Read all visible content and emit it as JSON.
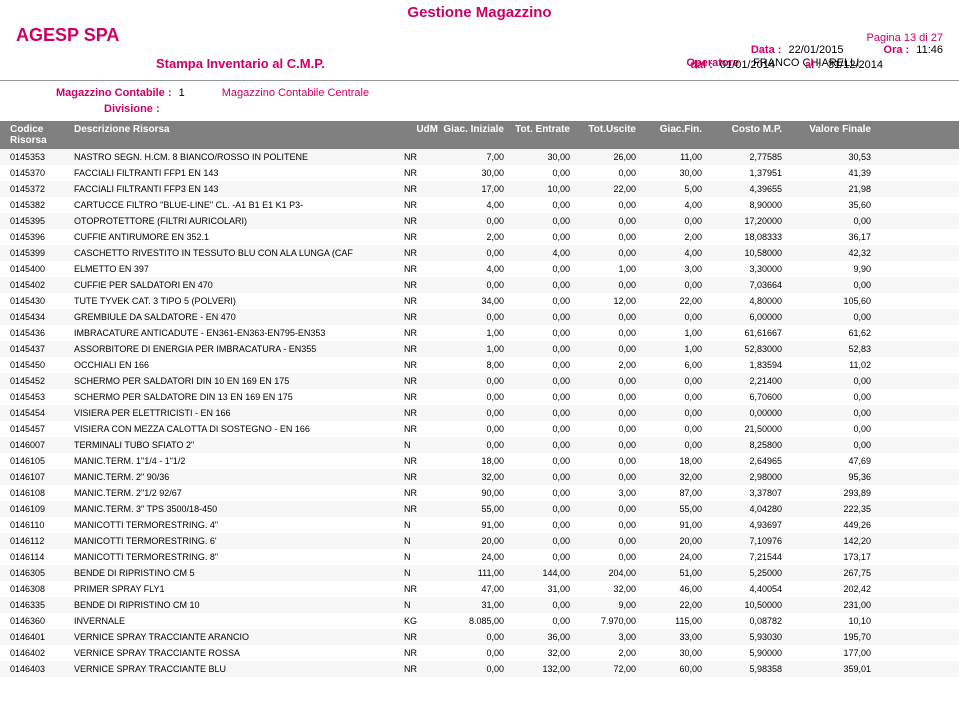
{
  "title": "Gestione Magazzino",
  "company": "AGESP SPA",
  "page_label": "Pagina",
  "page_value": "13 di 27",
  "subtitle": "Stampa Inventario al C.M.P.",
  "data_label": "Data :",
  "data_value": "22/01/2015",
  "ora_label": "Ora :",
  "ora_value": "11:46",
  "operatore_label": "Operatore",
  "operatore_value": "FRANCO CHIARELLI",
  "dal_label": "dal :",
  "dal_value": "01/01/2014",
  "al_label": "al :",
  "al_value": "31/12/2014",
  "mag_cont_label": "Magazzino Contabile :",
  "mag_cont_code": "1",
  "mag_cont_name": "Magazzino Contabile Centrale",
  "divisione_label": "Divisione :",
  "columns": {
    "code": "Codice Risorsa",
    "desc": "Descrizione Risorsa",
    "udm": "UdM",
    "giac_ini": "Giac. Iniziale",
    "entrate": "Tot. Entrate",
    "uscite": "Tot.Uscite",
    "giac_fin": "Giac.Fin.",
    "costo": "Costo M.P.",
    "valore": "Valore Finale"
  },
  "rows": [
    {
      "code": "0145353",
      "desc": "NASTRO SEGN. H.CM. 8 BIANCO/ROSSO IN POLITENE",
      "udm": "NR",
      "gi": "7,00",
      "en": "30,00",
      "us": "26,00",
      "gf": "11,00",
      "cm": "2,77585",
      "vf": "30,53"
    },
    {
      "code": "0145370",
      "desc": "FACCIALI FILTRANTI FFP1      EN 143",
      "udm": "NR",
      "gi": "30,00",
      "en": "0,00",
      "us": "0,00",
      "gf": "30,00",
      "cm": "1,37951",
      "vf": "41,39"
    },
    {
      "code": "0145372",
      "desc": "FACCIALI FILTRANTI FFP3      EN 143",
      "udm": "NR",
      "gi": "17,00",
      "en": "10,00",
      "us": "22,00",
      "gf": "5,00",
      "cm": "4,39655",
      "vf": "21,98"
    },
    {
      "code": "0145382",
      "desc": "CARTUCCE FILTRO \"BLUE-LINE\" CL. -A1 B1 E1 K1 P3-",
      "udm": "NR",
      "gi": "4,00",
      "en": "0,00",
      "us": "0,00",
      "gf": "4,00",
      "cm": "8,90000",
      "vf": "35,60"
    },
    {
      "code": "0145395",
      "desc": "OTOPROTETTORE (FILTRI AURICOLARI)",
      "udm": "NR",
      "gi": "0,00",
      "en": "0,00",
      "us": "0,00",
      "gf": "0,00",
      "cm": "17,20000",
      "vf": "0,00"
    },
    {
      "code": "0145396",
      "desc": "CUFFIE ANTIRUMORE            EN 352.1",
      "udm": "NR",
      "gi": "2,00",
      "en": "0,00",
      "us": "0,00",
      "gf": "2,00",
      "cm": "18,08333",
      "vf": "36,17"
    },
    {
      "code": "0145399",
      "desc": "CASCHETTO RIVESTITO IN TESSUTO BLU CON ALA LUNGA (CAF",
      "udm": "NR",
      "gi": "0,00",
      "en": "4,00",
      "us": "0,00",
      "gf": "4,00",
      "cm": "10,58000",
      "vf": "42,32"
    },
    {
      "code": "0145400",
      "desc": "ELMETTO                      EN 397",
      "udm": "NR",
      "gi": "4,00",
      "en": "0,00",
      "us": "1,00",
      "gf": "3,00",
      "cm": "3,30000",
      "vf": "9,90"
    },
    {
      "code": "0145402",
      "desc": "CUFFIE PER SALDATORI      EN 470",
      "udm": "NR",
      "gi": "0,00",
      "en": "0,00",
      "us": "0,00",
      "gf": "0,00",
      "cm": "7,03664",
      "vf": "0,00"
    },
    {
      "code": "0145430",
      "desc": "TUTE TYVEK CAT. 3 TIPO 5 (POLVERI)",
      "udm": "NR",
      "gi": "34,00",
      "en": "0,00",
      "us": "12,00",
      "gf": "22,00",
      "cm": "4,80000",
      "vf": "105,60"
    },
    {
      "code": "0145434",
      "desc": "GREMBIULE DA SALDATORE  - EN 470",
      "udm": "NR",
      "gi": "0,00",
      "en": "0,00",
      "us": "0,00",
      "gf": "0,00",
      "cm": "6,00000",
      "vf": "0,00"
    },
    {
      "code": "0145436",
      "desc": "IMBRACATURE ANTICADUTE - EN361-EN363-EN795-EN353",
      "udm": "NR",
      "gi": "1,00",
      "en": "0,00",
      "us": "0,00",
      "gf": "1,00",
      "cm": "61,61667",
      "vf": "61,62"
    },
    {
      "code": "0145437",
      "desc": "ASSORBITORE DI ENERGIA PER IMBRACATURA  - EN355",
      "udm": "NR",
      "gi": "1,00",
      "en": "0,00",
      "us": "0,00",
      "gf": "1,00",
      "cm": "52,83000",
      "vf": "52,83"
    },
    {
      "code": "0145450",
      "desc": "OCCHIALI  EN 166",
      "udm": "NR",
      "gi": "8,00",
      "en": "0,00",
      "us": "2,00",
      "gf": "6,00",
      "cm": "1,83594",
      "vf": "11,02"
    },
    {
      "code": "0145452",
      "desc": "SCHERMO PER SALDATORI DIN 10     EN 169 EN 175",
      "udm": "NR",
      "gi": "0,00",
      "en": "0,00",
      "us": "0,00",
      "gf": "0,00",
      "cm": "2,21400",
      "vf": "0,00"
    },
    {
      "code": "0145453",
      "desc": "SCHERMO PER SALDATORE DIN 13     EN 169 EN 175",
      "udm": "NR",
      "gi": "0,00",
      "en": "0,00",
      "us": "0,00",
      "gf": "0,00",
      "cm": "6,70600",
      "vf": "0,00"
    },
    {
      "code": "0145454",
      "desc": "VISIERA PER ELETTRICISTI     - EN 166",
      "udm": "NR",
      "gi": "0,00",
      "en": "0,00",
      "us": "0,00",
      "gf": "0,00",
      "cm": "0,00000",
      "vf": "0,00"
    },
    {
      "code": "0145457",
      "desc": "VISIERA CON MEZZA CALOTTA DI SOSTEGNO   - EN 166",
      "udm": "NR",
      "gi": "0,00",
      "en": "0,00",
      "us": "0,00",
      "gf": "0,00",
      "cm": "21,50000",
      "vf": "0,00"
    },
    {
      "code": "0146007",
      "desc": "TERMINALI TUBO SFIATO 2\"",
      "udm": "N",
      "gi": "0,00",
      "en": "0,00",
      "us": "0,00",
      "gf": "0,00",
      "cm": "8,25800",
      "vf": "0,00"
    },
    {
      "code": "0146105",
      "desc": "MANIC.TERM. 1\"1/4 - 1\"1/2",
      "udm": "NR",
      "gi": "18,00",
      "en": "0,00",
      "us": "0,00",
      "gf": "18,00",
      "cm": "2,64965",
      "vf": "47,69"
    },
    {
      "code": "0146107",
      "desc": "MANIC.TERM. 2\" 90/36",
      "udm": "NR",
      "gi": "32,00",
      "en": "0,00",
      "us": "0,00",
      "gf": "32,00",
      "cm": "2,98000",
      "vf": "95,36"
    },
    {
      "code": "0146108",
      "desc": "MANIC.TERM. 2\"1/2  92/67",
      "udm": "NR",
      "gi": "90,00",
      "en": "0,00",
      "us": "3,00",
      "gf": "87,00",
      "cm": "3,37807",
      "vf": "293,89"
    },
    {
      "code": "0146109",
      "desc": "MANIC.TERM. 3\" TPS 3500/18-450",
      "udm": "NR",
      "gi": "55,00",
      "en": "0,00",
      "us": "0,00",
      "gf": "55,00",
      "cm": "4,04280",
      "vf": "222,35"
    },
    {
      "code": "0146110",
      "desc": "MANICOTTI TERMORESTRING. 4\"",
      "udm": "N",
      "gi": "91,00",
      "en": "0,00",
      "us": "0,00",
      "gf": "91,00",
      "cm": "4,93697",
      "vf": "449,26"
    },
    {
      "code": "0146112",
      "desc": "MANICOTTI TERMORESTRING. 6'",
      "udm": "N",
      "gi": "20,00",
      "en": "0,00",
      "us": "0,00",
      "gf": "20,00",
      "cm": "7,10976",
      "vf": "142,20"
    },
    {
      "code": "0146114",
      "desc": "MANICOTTI TERMORESTRING. 8\"",
      "udm": "N",
      "gi": "24,00",
      "en": "0,00",
      "us": "0,00",
      "gf": "24,00",
      "cm": "7,21544",
      "vf": "173,17"
    },
    {
      "code": "0146305",
      "desc": "BENDE DI RIPRISTINO CM 5",
      "udm": "N",
      "gi": "111,00",
      "en": "144,00",
      "us": "204,00",
      "gf": "51,00",
      "cm": "5,25000",
      "vf": "267,75"
    },
    {
      "code": "0146308",
      "desc": "PRIMER SPRAY FLY1",
      "udm": "NR",
      "gi": "47,00",
      "en": "31,00",
      "us": "32,00",
      "gf": "46,00",
      "cm": "4,40054",
      "vf": "202,42"
    },
    {
      "code": "0146335",
      "desc": "BENDE DI RIPRISTINO CM 10",
      "udm": "N",
      "gi": "31,00",
      "en": "0,00",
      "us": "9,00",
      "gf": "22,00",
      "cm": "10,50000",
      "vf": "231,00"
    },
    {
      "code": "0146360",
      "desc": "INVERNALE",
      "udm": "KG",
      "gi": "8.085,00",
      "en": "0,00",
      "us": "7.970,00",
      "gf": "115,00",
      "cm": "0,08782",
      "vf": "10,10"
    },
    {
      "code": "0146401",
      "desc": "VERNICE SPRAY TRACCIANTE ARANCIO",
      "udm": "NR",
      "gi": "0,00",
      "en": "36,00",
      "us": "3,00",
      "gf": "33,00",
      "cm": "5,93030",
      "vf": "195,70"
    },
    {
      "code": "0146402",
      "desc": "VERNICE SPRAY TRACCIANTE ROSSA",
      "udm": "NR",
      "gi": "0,00",
      "en": "32,00",
      "us": "2,00",
      "gf": "30,00",
      "cm": "5,90000",
      "vf": "177,00"
    },
    {
      "code": "0146403",
      "desc": "VERNICE SPRAY TRACCIANTE BLU",
      "udm": "NR",
      "gi": "0,00",
      "en": "132,00",
      "us": "72,00",
      "gf": "60,00",
      "cm": "5,98358",
      "vf": "359,01"
    }
  ]
}
